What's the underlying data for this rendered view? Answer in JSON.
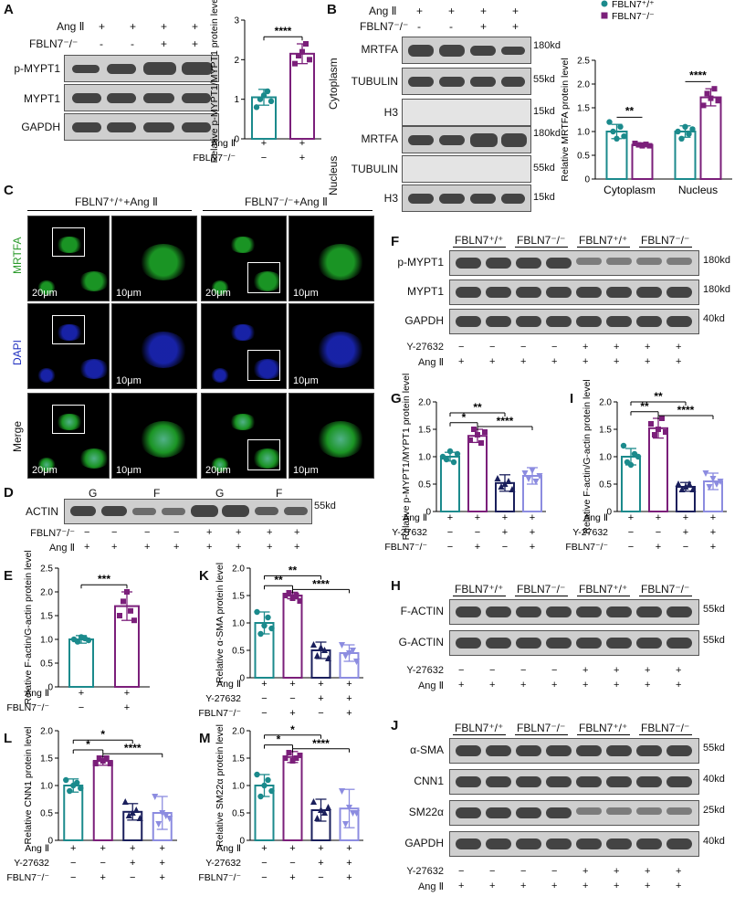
{
  "panels": {
    "A": {
      "label": "A",
      "header_rows": [
        {
          "name": "Ang Ⅱ",
          "values": [
            "+",
            "+",
            "+",
            "+"
          ]
        },
        {
          "name": "FBLN7⁻/⁻",
          "values": [
            "-",
            "-",
            "+",
            "+"
          ]
        }
      ],
      "blot_rows": [
        "p-MYPT1",
        "MYPT1",
        "GAPDH"
      ]
    },
    "B": {
      "label": "B",
      "header_rows": [
        {
          "name": "Ang Ⅱ",
          "values": [
            "+",
            "+",
            "+",
            "+"
          ]
        },
        {
          "name": "FBLN7⁻/⁻",
          "values": [
            "-",
            "-",
            "+",
            "+"
          ]
        }
      ],
      "groups": [
        "Cytoplasm",
        "Nucleus"
      ],
      "blot_rows": [
        "MRTFA",
        "TUBULIN",
        "H3",
        "MRTFA",
        "TUBULIN",
        "H3"
      ],
      "kd": [
        "180kd",
        "55kd",
        "15kd",
        "180kd",
        "55kd",
        "15kd"
      ]
    },
    "C": {
      "label": "C",
      "col_titles": [
        "FBLN7⁺/⁺+Ang Ⅱ",
        "FBLN7⁻/⁻+Ang Ⅱ"
      ],
      "row_labels": [
        "MRTFA",
        "DAPI",
        "Merge"
      ],
      "scale_large": "20μm",
      "scale_small": "10μm"
    },
    "D": {
      "label": "D",
      "lane_labels": [
        "G",
        "F",
        "G",
        "F"
      ],
      "row": "ACTIN",
      "kd": "55kd",
      "header_rows": [
        {
          "name": "FBLN7⁻/⁻",
          "values": [
            "−",
            "−",
            "−",
            "−",
            "+",
            "+",
            "+",
            "+"
          ]
        },
        {
          "name": "Ang Ⅱ",
          "values": [
            "+",
            "+",
            "+",
            "+",
            "+",
            "+",
            "+",
            "+"
          ]
        }
      ]
    },
    "F": {
      "label": "F",
      "groups": [
        "FBLN7⁺/⁺",
        "FBLN7⁻/⁻",
        "FBLN7⁺/⁺",
        "FBLN7⁻/⁻"
      ],
      "blot_rows": [
        "p-MYPT1",
        "MYPT1",
        "GAPDH"
      ],
      "kd": [
        "180kd",
        "180kd",
        "40kd"
      ],
      "header_rows": [
        {
          "name": "Y-27632",
          "values": [
            "−",
            "−",
            "−",
            "−",
            "+",
            "+",
            "+",
            "+"
          ]
        },
        {
          "name": "Ang Ⅱ",
          "values": [
            "+",
            "+",
            "+",
            "+",
            "+",
            "+",
            "+",
            "+"
          ]
        }
      ]
    },
    "H": {
      "label": "H",
      "groups": [
        "FBLN7⁺/⁺",
        "FBLN7⁻/⁻",
        "FBLN7⁺/⁺",
        "FBLN7⁻/⁻"
      ],
      "blot_rows": [
        "F-ACTIN",
        "G-ACTIN"
      ],
      "kd": [
        "55kd",
        "55kd"
      ],
      "header_rows": [
        {
          "name": "Y-27632",
          "values": [
            "−",
            "−",
            "−",
            "−",
            "+",
            "+",
            "+",
            "+"
          ]
        },
        {
          "name": "Ang Ⅱ",
          "values": [
            "+",
            "+",
            "+",
            "+",
            "+",
            "+",
            "+",
            "+"
          ]
        }
      ]
    },
    "J": {
      "label": "J",
      "groups": [
        "FBLN7⁺/⁺",
        "FBLN7⁻/⁻",
        "FBLN7⁺/⁺",
        "FBLN7⁻/⁻"
      ],
      "blot_rows": [
        "α-SMA",
        "CNN1",
        "SM22α",
        "GAPDH"
      ],
      "kd": [
        "55kd",
        "40kd",
        "25kd",
        "40kd"
      ],
      "header_rows": [
        {
          "name": "Y-27632",
          "values": [
            "−",
            "−",
            "−",
            "−",
            "+",
            "+",
            "+",
            "+"
          ]
        },
        {
          "name": "Ang Ⅱ",
          "values": [
            "+",
            "+",
            "+",
            "+",
            "+",
            "+",
            "+",
            "+"
          ]
        }
      ]
    },
    "E": {
      "label": "E"
    },
    "G": {
      "label": "G"
    },
    "I": {
      "label": "I"
    },
    "K": {
      "label": "K"
    },
    "L": {
      "label": "L"
    },
    "M": {
      "label": "M"
    }
  },
  "colors": {
    "teal": "#1b8a8c",
    "purple": "#7b1f7a",
    "navy": "#1a1f5c",
    "lavender": "#8c8ce0",
    "green": "#2ecc40",
    "blue": "#1e2fd0"
  },
  "chart_data": [
    {
      "id": "A",
      "type": "bar",
      "ylabel": "Relative p-MYPT1/MYPT1 protein level",
      "ylim": [
        0,
        3
      ],
      "yticks": [
        0,
        1,
        2,
        3
      ],
      "categories": [
        "",
        ""
      ],
      "values": [
        1.05,
        2.15
      ],
      "errors": [
        0.2,
        0.25
      ],
      "points": [
        [
          0.8,
          1.0,
          1.1,
          1.2,
          0.95
        ],
        [
          1.9,
          2.1,
          2.2,
          2.4,
          2.0
        ]
      ],
      "colors": [
        "#1b8a8c",
        "#7b1f7a"
      ],
      "factors": [
        {
          "name": "Ang Ⅱ",
          "values": [
            "+",
            "+"
          ]
        },
        {
          "name": "FBLN7⁻/⁻",
          "values": [
            "−",
            "+"
          ]
        }
      ],
      "sig": [
        {
          "from": 0,
          "to": 1,
          "text": "****"
        }
      ]
    },
    {
      "id": "B",
      "type": "bar",
      "ylabel": "Relative MRTFA protein level",
      "ylim": [
        0,
        2.5
      ],
      "yticks": [
        0,
        0.5,
        1.0,
        1.5,
        2.0,
        2.5
      ],
      "categories": [
        "Cytoplasm",
        "Nucleus"
      ],
      "series": [
        {
          "name": "FBLN7⁺/⁺",
          "values": [
            1.0,
            1.0
          ],
          "errors": [
            0.15,
            0.12
          ],
          "points": [
            [
              1.2,
              1.0,
              0.85,
              1.1,
              0.9
            ],
            [
              1.0,
              0.85,
              1.1,
              0.95,
              1.05
            ]
          ]
        },
        {
          "name": "FBLN7⁻/⁻",
          "values": [
            0.72,
            1.72
          ],
          "errors": [
            0.04,
            0.18
          ],
          "points": [
            [
              0.75,
              0.72,
              0.7,
              0.73,
              0.7
            ],
            [
              1.55,
              1.8,
              1.7,
              1.9,
              1.65
            ]
          ]
        }
      ],
      "colors": [
        "#1b8a8c",
        "#7b1f7a"
      ],
      "legend": "top-left",
      "sig": [
        {
          "cat": 0,
          "text": "**"
        },
        {
          "cat": 1,
          "text": "****"
        }
      ]
    },
    {
      "id": "E",
      "type": "bar",
      "ylabel": "Relative F-actin/G-actin protein level",
      "ylim": [
        0,
        2.5
      ],
      "yticks": [
        0,
        0.5,
        1.0,
        1.5,
        2.0,
        2.5
      ],
      "categories": [
        "",
        ""
      ],
      "values": [
        1.0,
        1.7
      ],
      "errors": [
        0.08,
        0.3
      ],
      "points": [
        [
          1.0,
          0.95,
          1.05,
          1.02,
          0.98
        ],
        [
          1.5,
          1.8,
          2.0,
          1.6,
          1.4
        ]
      ],
      "colors": [
        "#1b8a8c",
        "#7b1f7a"
      ],
      "factors": [
        {
          "name": "Ang Ⅱ",
          "values": [
            "+",
            "+"
          ]
        },
        {
          "name": "FBLN7⁻/⁻",
          "values": [
            "−",
            "+"
          ]
        }
      ],
      "sig": [
        {
          "from": 0,
          "to": 1,
          "text": "***"
        }
      ]
    },
    {
      "id": "G",
      "type": "bar",
      "ylabel": "Relative p-MYPT1/MYPT1 protein level",
      "ylim": [
        0,
        2.0
      ],
      "yticks": [
        0,
        0.5,
        1.0,
        1.5,
        2.0
      ],
      "categories": [
        "",
        "",
        "",
        ""
      ],
      "values": [
        1.0,
        1.38,
        0.52,
        0.65
      ],
      "errors": [
        0.08,
        0.12,
        0.15,
        0.15
      ],
      "points": [
        [
          1.0,
          0.95,
          1.1,
          0.9,
          1.05
        ],
        [
          1.3,
          1.5,
          1.4,
          1.25,
          1.45
        ],
        [
          0.6,
          0.45,
          0.5,
          0.55,
          0.4
        ],
        [
          0.7,
          0.6,
          0.75,
          0.55,
          0.65
        ]
      ],
      "colors": [
        "#1b8a8c",
        "#7b1f7a",
        "#1a1f5c",
        "#8c8ce0"
      ],
      "factors": [
        {
          "name": "Ang Ⅱ",
          "values": [
            "+",
            "+",
            "+",
            "+"
          ]
        },
        {
          "name": "Y-27632",
          "values": [
            "−",
            "−",
            "+",
            "+"
          ]
        },
        {
          "name": "FBLN7⁻/⁻",
          "values": [
            "−",
            "+",
            "−",
            "+"
          ]
        }
      ],
      "sig": [
        {
          "from": 0,
          "to": 1,
          "text": "*"
        },
        {
          "from": 1,
          "to": 3,
          "text": "****"
        },
        {
          "from": 0,
          "to": 2,
          "text": "**"
        }
      ]
    },
    {
      "id": "I",
      "type": "bar",
      "ylabel": "Relative F-actin/G-actin protein level",
      "ylim": [
        0,
        2.0
      ],
      "yticks": [
        0,
        0.5,
        1.0,
        1.5,
        2.0
      ],
      "categories": [
        "",
        "",
        "",
        ""
      ],
      "values": [
        1.0,
        1.52,
        0.45,
        0.55
      ],
      "errors": [
        0.15,
        0.18,
        0.08,
        0.15
      ],
      "points": [
        [
          1.2,
          0.9,
          0.85,
          1.05,
          1.0
        ],
        [
          1.6,
          1.4,
          1.5,
          1.7,
          1.45
        ],
        [
          0.5,
          0.4,
          0.45,
          0.5,
          0.4
        ],
        [
          0.7,
          0.45,
          0.6,
          0.5,
          0.55
        ]
      ],
      "colors": [
        "#1b8a8c",
        "#7b1f7a",
        "#1a1f5c",
        "#8c8ce0"
      ],
      "factors": [
        {
          "name": "Ang Ⅱ",
          "values": [
            "+",
            "+",
            "+",
            "+"
          ]
        },
        {
          "name": "Y-27632",
          "values": [
            "−",
            "−",
            "+",
            "+"
          ]
        },
        {
          "name": "FBLN7⁻/⁻",
          "values": [
            "−",
            "+",
            "−",
            "+"
          ]
        }
      ],
      "sig": [
        {
          "from": 0,
          "to": 1,
          "text": "**"
        },
        {
          "from": 1,
          "to": 3,
          "text": "****"
        },
        {
          "from": 0,
          "to": 2,
          "text": "**"
        }
      ]
    },
    {
      "id": "K",
      "type": "bar",
      "ylabel": "Relative α-SMA protein level",
      "ylim": [
        0,
        2.0
      ],
      "yticks": [
        0,
        0.5,
        1.0,
        1.5,
        2.0
      ],
      "categories": [
        "",
        "",
        "",
        ""
      ],
      "values": [
        1.0,
        1.5,
        0.5,
        0.45
      ],
      "errors": [
        0.2,
        0.06,
        0.15,
        0.15
      ],
      "points": [
        [
          1.2,
          0.8,
          0.95,
          1.1,
          0.9
        ],
        [
          1.5,
          1.55,
          1.45,
          1.5,
          1.4
        ],
        [
          0.6,
          0.4,
          0.55,
          0.5,
          0.35
        ],
        [
          0.6,
          0.4,
          0.45,
          0.5,
          0.3
        ]
      ],
      "colors": [
        "#1b8a8c",
        "#7b1f7a",
        "#1a1f5c",
        "#8c8ce0"
      ],
      "factors": [
        {
          "name": "Ang Ⅱ",
          "values": [
            "+",
            "+",
            "+",
            "+"
          ]
        },
        {
          "name": "Y-27632",
          "values": [
            "−",
            "−",
            "+",
            "+"
          ]
        },
        {
          "name": "FBLN7⁻/⁻",
          "values": [
            "−",
            "+",
            "−",
            "+"
          ]
        }
      ],
      "sig": [
        {
          "from": 0,
          "to": 1,
          "text": "**"
        },
        {
          "from": 1,
          "to": 3,
          "text": "****"
        },
        {
          "from": 0,
          "to": 2,
          "text": "**"
        }
      ]
    },
    {
      "id": "L",
      "type": "bar",
      "ylabel": "Relative CNN1 protein level",
      "ylim": [
        0,
        2.0
      ],
      "yticks": [
        0,
        0.5,
        1.0,
        1.5,
        2.0
      ],
      "categories": [
        "",
        "",
        "",
        ""
      ],
      "values": [
        1.0,
        1.45,
        0.52,
        0.5
      ],
      "errors": [
        0.12,
        0.08,
        0.15,
        0.3
      ],
      "points": [
        [
          1.1,
          0.9,
          1.0,
          1.05,
          0.95
        ],
        [
          1.4,
          1.5,
          1.45,
          1.5,
          1.4
        ],
        [
          0.7,
          0.45,
          0.5,
          0.55,
          0.4
        ],
        [
          0.8,
          0.3,
          0.5,
          0.45,
          0.4
        ]
      ],
      "colors": [
        "#1b8a8c",
        "#7b1f7a",
        "#1a1f5c",
        "#8c8ce0"
      ],
      "factors": [
        {
          "name": "Ang Ⅱ",
          "values": [
            "+",
            "+",
            "+",
            "+"
          ]
        },
        {
          "name": "Y-27632",
          "values": [
            "−",
            "−",
            "+",
            "+"
          ]
        },
        {
          "name": "FBLN7⁻/⁻",
          "values": [
            "−",
            "+",
            "−",
            "+"
          ]
        }
      ],
      "sig": [
        {
          "from": 0,
          "to": 1,
          "text": "*"
        },
        {
          "from": 1,
          "to": 3,
          "text": "****"
        },
        {
          "from": 0,
          "to": 2,
          "text": "*"
        }
      ]
    },
    {
      "id": "M",
      "type": "bar",
      "ylabel": "Relative SM22α protein level",
      "ylim": [
        0,
        2.0
      ],
      "yticks": [
        0,
        0.5,
        1.0,
        1.5,
        2.0
      ],
      "categories": [
        "",
        "",
        "",
        ""
      ],
      "values": [
        1.0,
        1.52,
        0.55,
        0.58
      ],
      "errors": [
        0.2,
        0.1,
        0.2,
        0.35
      ],
      "points": [
        [
          1.2,
          0.8,
          1.0,
          1.1,
          0.9
        ],
        [
          1.5,
          1.6,
          1.45,
          1.5,
          1.55
        ],
        [
          0.7,
          0.4,
          0.55,
          0.5,
          0.6
        ],
        [
          0.9,
          0.3,
          0.6,
          0.5,
          0.5
        ]
      ],
      "colors": [
        "#1b8a8c",
        "#7b1f7a",
        "#1a1f5c",
        "#8c8ce0"
      ],
      "factors": [
        {
          "name": "Ang Ⅱ",
          "values": [
            "+",
            "+",
            "+",
            "+"
          ]
        },
        {
          "name": "Y-27632",
          "values": [
            "−",
            "−",
            "+",
            "+"
          ]
        },
        {
          "name": "FBLN7⁻/⁻",
          "values": [
            "−",
            "+",
            "−",
            "+"
          ]
        }
      ],
      "sig": [
        {
          "from": 0,
          "to": 1,
          "text": "*"
        },
        {
          "from": 1,
          "to": 3,
          "text": "****"
        },
        {
          "from": 0,
          "to": 2,
          "text": "*"
        }
      ]
    }
  ]
}
